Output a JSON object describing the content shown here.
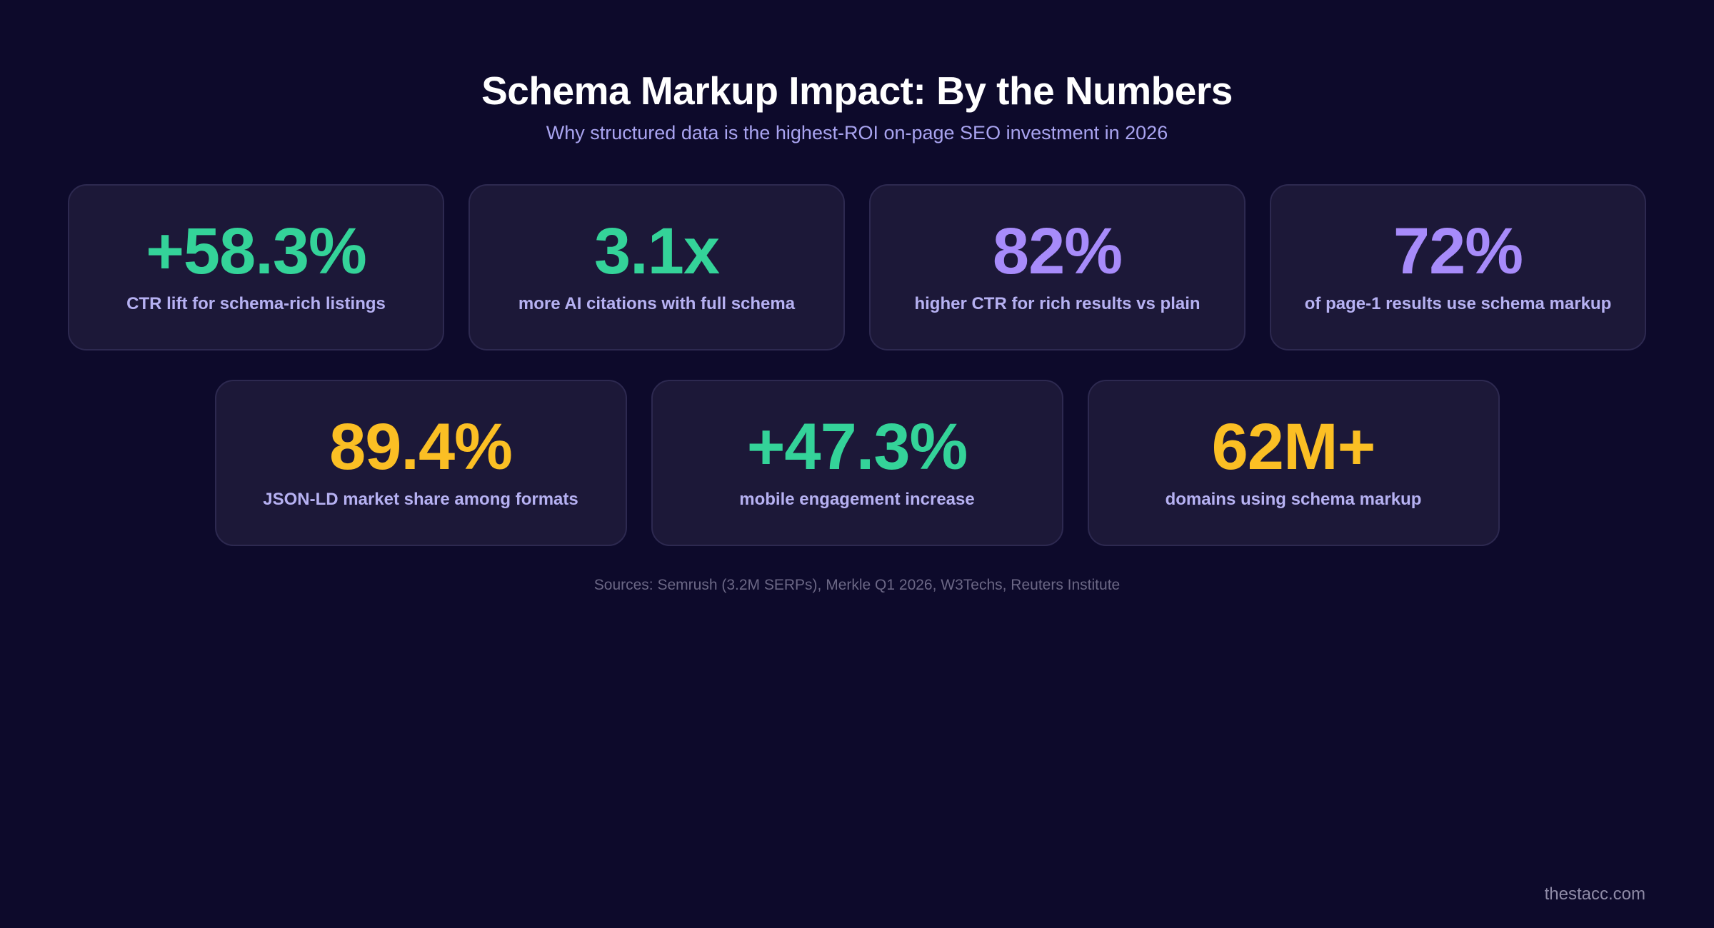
{
  "header": {
    "title": "Schema Markup Impact: By the Numbers",
    "subtitle": "Why structured data is the highest-ROI on-page SEO investment in 2026"
  },
  "stats_row_1": [
    {
      "value": "+58.3%",
      "label": "CTR lift for schema-rich listings",
      "color": "#34d399"
    },
    {
      "value": "3.1x",
      "label": "more AI citations with full schema",
      "color": "#34d399"
    },
    {
      "value": "82%",
      "label": "higher CTR for rich results vs plain",
      "color": "#a78bfa"
    },
    {
      "value": "72%",
      "label": "of page-1 results use schema markup",
      "color": "#a78bfa"
    }
  ],
  "stats_row_2": [
    {
      "value": "89.4%",
      "label": "JSON-LD market share among formats",
      "color": "#fbbf24"
    },
    {
      "value": "+47.3%",
      "label": "mobile engagement increase",
      "color": "#34d399"
    },
    {
      "value": "62M+",
      "label": "domains using schema markup",
      "color": "#fbbf24"
    }
  ],
  "sources": "Sources: Semrush (3.2M SERPs), Merkle Q1 2026, W3Techs, Reuters Institute",
  "watermark": "thestacc.com",
  "colors": {
    "background": "#0d0a2b",
    "card": "#1c1838",
    "green": "#34d399",
    "purple": "#a78bfa",
    "yellow": "#fbbf24"
  }
}
